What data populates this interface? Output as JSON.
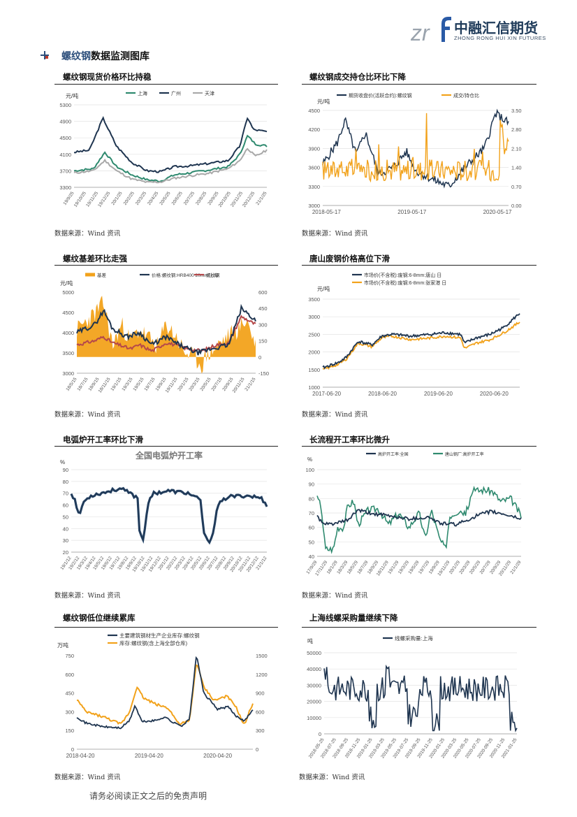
{
  "brand": {
    "mark": "zrf",
    "name_cn": "中融汇信期货",
    "name_en": "ZHONG RONG HUI XIN FUTURES",
    "colors": {
      "mark": "#9aa3ad",
      "accent": "#2a5aa6",
      "navy": "#1f3b5a"
    }
  },
  "section": {
    "highlight": "螺纹钢",
    "rest": "数据监测图库",
    "bullet_icon": "plus-bullet-icon"
  },
  "panels": [
    {
      "title": "螺纹钢现货价格环比持稳",
      "source": "数据来源：Wind 资讯"
    },
    {
      "title": "螺纹钢成交持仓比环比下降",
      "source": "数据来源：Wind 资讯"
    },
    {
      "title": "螺纹基差环比走强",
      "source": "数据来源：Wind 资讯"
    },
    {
      "title": "唐山废钢价格高位下滑",
      "source": "数据来源：Wind 资讯"
    },
    {
      "title": "电弧炉开工率环比下滑",
      "source": "数据来源：Wind 资讯"
    },
    {
      "title": "长流程开工率环比微升",
      "source": "数据来源：Wind 资讯"
    },
    {
      "title": "螺纹钢低位继续累库",
      "source": "数据来源：Wind 资讯"
    },
    {
      "title": "上海线螺采购量继续下降",
      "source": "数据来源：Wind 资讯"
    }
  ],
  "footer": "请务必阅读正文之后的免责声明",
  "chart_data": [
    {
      "type": "line",
      "unit": "元/吨",
      "series": [
        {
          "name": "上海",
          "color": "#2f8a6f"
        },
        {
          "name": "广州",
          "color": "#1f3550"
        },
        {
          "name": "天津",
          "color": "#a9a9a9"
        }
      ],
      "y_ticks": [
        3300,
        3700,
        4100,
        4500,
        4900,
        5300
      ],
      "x_ticks": [
        "19/9/25",
        "19/10/25",
        "19/11/25",
        "19/12/25",
        "20/1/25",
        "20/2/25",
        "20/3/25",
        "20/4/25",
        "20/5/25",
        "20/6/25",
        "20/7/25",
        "20/8/25",
        "20/9/25",
        "20/10/25",
        "20/11/25",
        "20/12/25",
        "21/1/25"
      ],
      "ylim": [
        3300,
        5300
      ]
    },
    {
      "type": "line",
      "unit": "元/吨",
      "series": [
        {
          "name": "期货收盘价(活跃合约):螺纹钢",
          "color": "#1f3550",
          "axis": "left"
        },
        {
          "name": "成交/持仓比",
          "color": "#f2a21b",
          "axis": "right"
        }
      ],
      "y_ticks": [
        3000,
        3300,
        3600,
        3900,
        4200,
        4500
      ],
      "y2_ticks": [
        "0.00",
        "0.70",
        "1.40",
        "2.10",
        "2.80",
        "3.50"
      ],
      "x_ticks": [
        "2018-05-17",
        "2019-05-17",
        "2020-05-17"
      ]
    },
    {
      "type": "line",
      "unit": "元/吨",
      "series": [
        {
          "name": "基差",
          "color": "#f2a21b",
          "style": "area",
          "axis": "right"
        },
        {
          "name": "价格:螺纹钢:HRB400 20mm:上海",
          "color": "#1f3550",
          "axis": "left"
        },
        {
          "name": "螺纹钢",
          "color": "#b5484a",
          "axis": "left"
        }
      ],
      "y_ticks": [
        3000,
        3500,
        4000,
        4500,
        5000
      ],
      "y2_ticks": [
        -150,
        0,
        150,
        300,
        450,
        600
      ],
      "x_ticks": [
        "18/5/15",
        "18/7/15",
        "18/9/15",
        "18/11/15",
        "19/1/15",
        "19/3/15",
        "19/5/15",
        "19/7/15",
        "19/9/15",
        "19/11/15",
        "20/1/15",
        "20/3/15",
        "20/5/15",
        "20/7/15",
        "20/9/15",
        "20/11/15",
        "21/1/15"
      ]
    },
    {
      "type": "line",
      "unit": "元/吨",
      "series": [
        {
          "name": "市场价(不含税):废钢:6-8mm:唐山 日",
          "color": "#1f3550"
        },
        {
          "name": "市场价(不含税):废钢:6-8mm:张家港 日",
          "color": "#f2a21b"
        }
      ],
      "y_ticks": [
        1000,
        1500,
        2000,
        2500,
        3000,
        3500
      ],
      "x_ticks": [
        "2017-06-20",
        "2018-06-20",
        "2019-06-20",
        "2020-06-20"
      ]
    },
    {
      "type": "line",
      "title": "全国电弧炉开工率",
      "unit": "%",
      "series": [
        {
          "name": "",
          "color": "#1f3550"
        }
      ],
      "y_ticks": [
        20,
        30,
        40,
        50,
        60,
        70,
        80,
        90
      ],
      "x_ticks": [
        "19/1/12",
        "19/2/12",
        "19/3/12",
        "19/4/12",
        "19/5/12",
        "19/6/12",
        "19/7/12",
        "19/8/12",
        "19/9/12",
        "19/10/12",
        "19/11/12",
        "19/12/12",
        "20/1/12",
        "20/2/12",
        "20/3/12",
        "20/4/12",
        "20/5/12",
        "20/6/12",
        "20/7/12",
        "20/8/12",
        "20/9/12",
        "20/10/12",
        "20/11/12",
        "20/12/12",
        "21/1/12"
      ]
    },
    {
      "type": "line",
      "unit": "%",
      "series": [
        {
          "name": "高炉开工率:全国",
          "color": "#1f3550"
        },
        {
          "name": "唐山钢厂:高炉开工率",
          "color": "#2f8a6f"
        }
      ],
      "y_ticks": [
        40,
        50,
        60,
        70,
        80,
        90,
        100
      ],
      "x_ticks": [
        "17/9/29",
        "17/11/29",
        "18/1/29",
        "18/3/29",
        "18/5/29",
        "18/7/29",
        "18/9/29",
        "18/11/29",
        "19/1/29",
        "19/3/29",
        "19/5/29",
        "19/7/29",
        "19/9/29",
        "19/11/29",
        "20/1/29",
        "20/3/29",
        "20/5/29",
        "20/7/29",
        "20/9/29",
        "20/11/29",
        "21/1/29"
      ]
    },
    {
      "type": "line",
      "unit": "万吨",
      "series": [
        {
          "name": "主要建筑钢材生产企业库存:螺纹钢",
          "color": "#1f3550",
          "axis": "left"
        },
        {
          "name": "库存:螺纹钢(含上海全部仓库)",
          "color": "#f2a21b",
          "axis": "right"
        }
      ],
      "y_ticks": [
        0,
        150,
        300,
        450,
        600,
        750
      ],
      "y2_ticks": [
        0,
        300,
        600,
        900,
        1200,
        1500
      ],
      "x_ticks": [
        "2018-04-20",
        "2019-04-20",
        "2020-04-20"
      ]
    },
    {
      "type": "line",
      "unit": "吨",
      "series": [
        {
          "name": "线螺采购量:上海",
          "color": "#1f3550"
        }
      ],
      "y_ticks": [
        0,
        10000,
        20000,
        30000,
        40000,
        50000
      ],
      "x_ticks": [
        "2018-05-25",
        "2018-07-25",
        "2018-09-25",
        "2018-11-25",
        "2019-01-25",
        "2019-03-25",
        "2019-05-25",
        "2019-07-25",
        "2019-09-25",
        "2019-11-25",
        "2020-01-25",
        "2020-03-25",
        "2020-05-25",
        "2020-07-25",
        "2020-09-25",
        "2020-11-25",
        "2021-01-25"
      ]
    }
  ]
}
